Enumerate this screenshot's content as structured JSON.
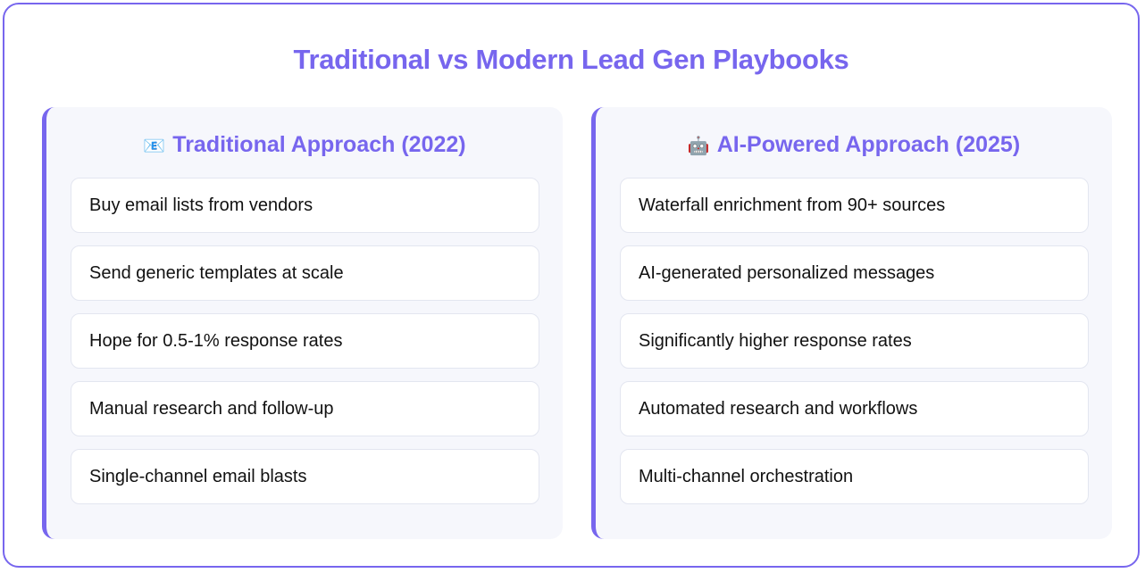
{
  "title": "Traditional vs Modern Lead Gen Playbooks",
  "colors": {
    "accent": "#7766ee",
    "panel_bg": "#f6f7fc",
    "card_border": "#e3e6f0"
  },
  "panels": [
    {
      "icon": "📧",
      "icon_name": "envelope-icon",
      "title": "Traditional Approach (2022)",
      "items": [
        "Buy email lists from vendors",
        "Send generic templates at scale",
        "Hope for 0.5-1% response rates",
        "Manual research and follow-up",
        "Single-channel email blasts"
      ]
    },
    {
      "icon": "🤖",
      "icon_name": "robot-icon",
      "title": "AI-Powered Approach (2025)",
      "items": [
        "Waterfall enrichment from 90+ sources",
        "AI-generated personalized messages",
        "Significantly higher response rates",
        "Automated research and workflows",
        "Multi-channel orchestration"
      ]
    }
  ]
}
